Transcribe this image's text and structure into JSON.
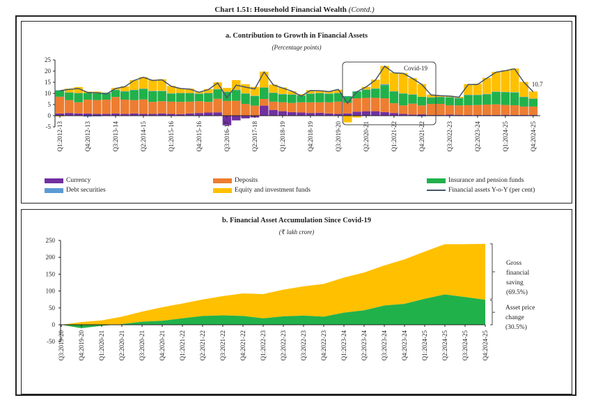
{
  "title": "Chart 1.51: Household Financial Wealth",
  "title_suffix": "(Contd.)",
  "colors": {
    "currency": "#7030a0",
    "debt": "#5b9bd5",
    "deposits": "#ed7d31",
    "insurance": "#21b14b",
    "equity": "#ffc000",
    "line": "#44546a"
  },
  "chart_data": [
    {
      "type": "bar",
      "stacked": true,
      "title": "a. Contribution to Growth in Financial Assets",
      "subtitle": "(Percentage points)",
      "ylim": [
        -5,
        25
      ],
      "yticks": [
        -5,
        0,
        5,
        10,
        15,
        20,
        25
      ],
      "grid": false,
      "legend": "bottom",
      "tick_labels": [
        "Q1:2012-13",
        "Q4:2012-13",
        "Q3:2013-14",
        "Q2:2014-15",
        "Q1:2015-16",
        "Q4:2015-16",
        "Q3:2016-17",
        "Q2:2017-18",
        "Q1:2018-19",
        "Q4:2018-19",
        "Q3:2019-20",
        "Q2:2020-21",
        "Q1:2021-22",
        "Q4:2021-22",
        "Q3:2022-23",
        "Q2:2023-24",
        "Q1:2024-25",
        "Q4:2024-25"
      ],
      "tick_every": 3,
      "annotation": "Covid-19",
      "end_label": "10.7",
      "series": [
        {
          "name": "Currency",
          "key": "currency",
          "values": [
            1,
            1.2,
            1,
            1,
            0.8,
            0.8,
            1,
            0.8,
            1,
            0.8,
            0.8,
            1,
            0.8,
            0.7,
            1,
            1.2,
            1.4,
            1.5,
            -4.3,
            -2.1,
            -1.2,
            -0.8,
            4.5,
            2.6,
            2,
            1.6,
            1.4,
            1.2,
            1.3,
            1,
            0.8,
            1,
            1.8,
            2,
            2,
            1.6,
            1.2,
            0.8,
            0.5,
            0.6,
            0.3,
            0.3,
            0.5,
            0.4,
            0.3,
            0.3,
            0.3,
            0.3,
            0.4,
            0.3,
            0.3,
            0.3
          ]
        },
        {
          "name": "Deposits",
          "key": "deposits",
          "values": [
            7.5,
            5.8,
            5,
            6.2,
            6.2,
            6.4,
            7.4,
            6.4,
            6,
            6.5,
            5.4,
            5.5,
            5.5,
            5.5,
            5.3,
            5.3,
            4.8,
            6.1,
            6.6,
            6.7,
            5.3,
            4.5,
            3,
            3.7,
            4,
            4.1,
            4.6,
            4.8,
            4.7,
            5,
            5.5,
            4.8,
            6,
            6,
            6,
            6.2,
            4.4,
            3.8,
            4.9,
            4,
            5,
            5,
            4.2,
            4.2,
            4.4,
            4.5,
            4.7,
            4.8,
            4.4,
            4.4,
            3.8,
            3.8
          ]
        },
        {
          "name": "Insurance and pension funds",
          "key": "insurance",
          "values": [
            2.8,
            3.3,
            4,
            3,
            3,
            3,
            3.1,
            3.6,
            4.4,
            4.7,
            4.8,
            4.5,
            3.6,
            3.8,
            3.7,
            3.3,
            3.8,
            4.2,
            4,
            4.8,
            4.6,
            4.3,
            5,
            3.9,
            3.6,
            3.7,
            3,
            3.8,
            4,
            3.8,
            3.7,
            2.8,
            3,
            3.6,
            4.1,
            5.9,
            5.2,
            5.3,
            4,
            3.9,
            2.8,
            3,
            3.5,
            3.2,
            4.5,
            4.4,
            4.6,
            5.6,
            5.7,
            5.7,
            4.2,
            3.4
          ]
        },
        {
          "name": "Debt securities",
          "key": "debt",
          "values": [
            0.15,
            0.15,
            0.15,
            -0.4,
            -0.3,
            0.15,
            0.15,
            0.15,
            0.15,
            0.15,
            0.15,
            0.15,
            0.15,
            0.15,
            0.15,
            0.15,
            0.15,
            0.15,
            0.15,
            0.15,
            0.15,
            0.15,
            0.15,
            0.15,
            0.15,
            0.15,
            0.15,
            0.15,
            0.15,
            0.15,
            0.15,
            0.2,
            0.15,
            0.15,
            0.15,
            0.4,
            0.15,
            0.15,
            0.15,
            -0.3,
            0.15,
            0.15,
            0.15,
            0.15,
            0.15,
            0.15,
            0.15,
            0.15,
            0.15,
            0.15,
            0.15,
            0.15
          ]
        },
        {
          "name": "Equity and investment funds",
          "key": "equity",
          "values": [
            -0.3,
            1.7,
            2.7,
            0.6,
            0.8,
            0.1,
            0.8,
            2.2,
            4.4,
            5.2,
            5,
            5.2,
            3.3,
            2.2,
            2,
            0.7,
            1.8,
            3,
            1.7,
            4.3,
            4.1,
            4,
            7.1,
            3.6,
            2.9,
            1.4,
            0.5,
            1.5,
            1.2,
            1,
            1.5,
            -3,
            -0.8,
            1.2,
            3.9,
            8.2,
            8.4,
            9.1,
            7.3,
            5.7,
            1.2,
            0.5,
            0.6,
            0.5,
            4.8,
            5,
            7.2,
            8.8,
            9.7,
            10.6,
            6.7,
            3.2
          ]
        },
        {
          "name": "Financial assets Y-o-Y (per cent)",
          "key": "line",
          "type": "line",
          "values": [
            11.2,
            11.8,
            12.2,
            10.4,
            10.3,
            9.7,
            12.2,
            13,
            15.8,
            17.2,
            15.8,
            16.1,
            13.2,
            12.2,
            11.9,
            10.5,
            11.7,
            14.7,
            8,
            13.7,
            12.8,
            12,
            19.6,
            13.8,
            12.4,
            11,
            8.8,
            11.3,
            11.2,
            10.8,
            11.8,
            5.6,
            10.7,
            12.9,
            16,
            22.2,
            19.2,
            19,
            16.7,
            14,
            9.3,
            9,
            8.8,
            8.3,
            14,
            14,
            16.8,
            19.5,
            20.2,
            21,
            15,
            10.7
          ]
        }
      ]
    },
    {
      "type": "area",
      "stacked": true,
      "title": "b. Financial Asset Accumulation Since Covid-19",
      "subtitle": "(₹ lakh crore)",
      "ylim": [
        -50,
        250
      ],
      "yticks": [
        -50,
        0,
        50,
        100,
        150,
        200,
        250
      ],
      "grid": false,
      "categories": [
        "Q3:2019-20",
        "Q4:2019-20",
        "Q1:2020-21",
        "Q2:2020-21",
        "Q3:2020-21",
        "Q4:2020-21",
        "Q1:2021-22",
        "Q2:2021-22",
        "Q3:2021-22",
        "Q4:2021-22",
        "Q1:2022-23",
        "Q2:2022-23",
        "Q3:2022-23",
        "Q4:2022-23",
        "Q1:2023-24",
        "Q2:2023-24",
        "Q3:2023-24",
        "Q4:2023-24",
        "Q1:2024-25",
        "Q2:2024-25",
        "Q3:2024-25",
        "Q4:2024-25"
      ],
      "total": [
        0,
        8,
        13,
        24,
        39,
        52,
        63,
        75,
        85,
        93,
        91,
        104,
        114,
        121,
        140,
        155,
        176,
        194,
        217,
        239,
        239,
        240
      ],
      "asset_price_change": [
        0,
        -10,
        -3,
        2,
        9,
        12,
        19,
        26,
        28,
        26,
        19,
        25,
        27,
        24,
        36,
        43,
        57,
        62,
        77,
        90,
        82,
        74
      ],
      "annotations": {
        "gross": [
          "Gross",
          "financial",
          "saving",
          "(69.5%)"
        ],
        "asset": [
          "Asset price",
          "change",
          "(30.5%)"
        ]
      }
    }
  ]
}
